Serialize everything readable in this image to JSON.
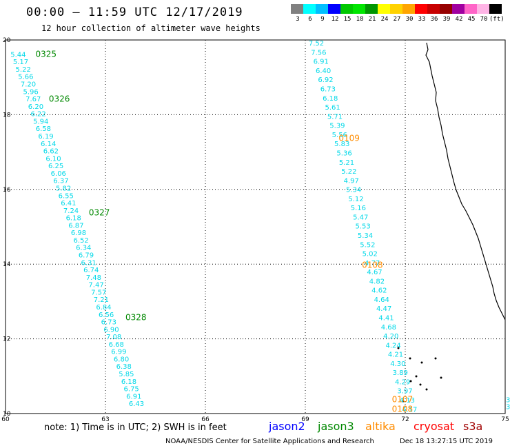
{
  "header": {
    "title": "00:00 – 11:59 UTC 12/17/2019",
    "subtitle": "12 hour collection of altimeter wave heights"
  },
  "color_scale": {
    "swatches": [
      "#808080",
      "#00ffff",
      "#00bfff",
      "#0000ff",
      "#00c800",
      "#00e600",
      "#009600",
      "#ffff00",
      "#ffd200",
      "#ffa500",
      "#ff0000",
      "#c80000",
      "#960000",
      "#a000a0",
      "#ff64c8",
      "#ffb4e6",
      "#000000"
    ],
    "labels": [
      "3",
      "6",
      "9",
      "12",
      "15",
      "18",
      "21",
      "24",
      "27",
      "30",
      "33",
      "36",
      "39",
      "42",
      "45",
      "70",
      "(ft)"
    ]
  },
  "map": {
    "x_ticks": [
      "60",
      "63",
      "66",
      "69",
      "72",
      "75"
    ],
    "y_ticks": [
      "20",
      "18",
      "16",
      "14",
      "12",
      "10"
    ],
    "colors": {
      "cyan": "#00d8e8",
      "green": "#008800",
      "orange": "#ff8c00"
    },
    "passes": [
      {
        "label": "0325",
        "color": "green",
        "lon": 60.9,
        "lat": 19.55
      },
      {
        "label": "0326",
        "color": "green",
        "lon": 61.3,
        "lat": 18.35
      },
      {
        "label": "0327",
        "color": "green",
        "lon": 62.5,
        "lat": 15.3
      },
      {
        "label": "0328",
        "color": "green",
        "lon": 63.6,
        "lat": 12.5
      },
      {
        "label": "0109",
        "color": "orange",
        "lon": 70.0,
        "lat": 17.3
      },
      {
        "label": "0108",
        "color": "orange",
        "lon": 70.7,
        "lat": 13.9
      },
      {
        "label": "0107",
        "color": "orange",
        "lon": 71.6,
        "lat": 10.3
      },
      {
        "label": "0108",
        "color": "orange",
        "lon": 71.6,
        "lat": 10.05
      }
    ],
    "track_a": {
      "lon_start": 60.15,
      "lat_start": 19.55,
      "lon_end": 63.7,
      "lat_end": 10.2,
      "values": [
        "5.44",
        "5.17",
        "5.22",
        "5.66",
        "7.20",
        "5.96",
        "7.67",
        "6.20",
        "6.22",
        "5.94",
        "6.58",
        "6.19",
        "6.14",
        "6.62",
        "6.10",
        "6.25",
        "6.06",
        "6.37",
        "5.82",
        "6.55",
        "6.41",
        "7.24",
        "6.18",
        "6.87",
        "6.98",
        "6.52",
        "6.34",
        "6.79",
        "6.31",
        "6.74",
        "7.48",
        "7.47",
        "7.57",
        "7.21",
        "6.84",
        "6.56",
        "6.73",
        "6.90",
        "7.08",
        "6.68",
        "6.99",
        "6.80",
        "6.38",
        "5.85",
        "6.18",
        "6.75",
        "6.91",
        "6.43"
      ]
    },
    "track_b": {
      "lon_start": 69.1,
      "lat_start": 19.85,
      "lon_end": 71.9,
      "lat_end": 10.05,
      "values": [
        "7.52",
        "7.56",
        "6.91",
        "6.40",
        "6.92",
        "6.73",
        "6.18",
        "5.61",
        "5.71",
        "5.39",
        "5.56",
        "5.83",
        "5.36",
        "5.21",
        "5.22",
        "4.97",
        "5.34",
        "5.12",
        "5.16",
        "5.47",
        "5.53",
        "5.34",
        "5.52",
        "5.02",
        "4.77",
        "4.67",
        "4.82",
        "4.62",
        "4.64",
        "4.47",
        "4.41",
        "4.68",
        "4.20",
        "4.24",
        "4.21",
        "4.30",
        "3.89",
        "4.29",
        "3.97",
        "4.13",
        "4.17"
      ]
    },
    "edge_values": [
      "3",
      "3"
    ]
  },
  "footer": {
    "note": "note: 1) Time is in UTC; 2) SWH is in feet",
    "satellites": [
      {
        "name": "jason2",
        "color": "#0000ff"
      },
      {
        "name": "jason3",
        "color": "#008800"
      },
      {
        "name": "altika",
        "color": "#ff8c00"
      },
      {
        "name": "cryosat",
        "color": "#ff0000"
      },
      {
        "name": "s3a",
        "color": "#a00000"
      }
    ],
    "credit": "NOAA/NESDIS Center for Satellite Applications and Research",
    "timestamp": "Dec 18 13:27:15 UTC 2019"
  }
}
